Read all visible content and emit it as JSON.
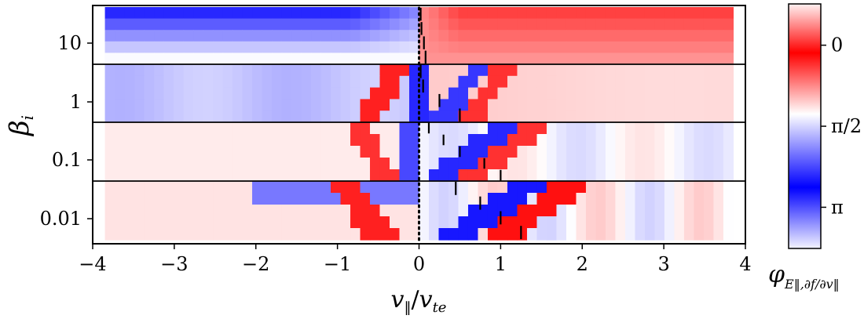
{
  "chart_data": {
    "type": "heatmap",
    "title": "",
    "xlabel": "v‖/vte",
    "ylabel": "βi",
    "xlim": [
      -4,
      4
    ],
    "x_ticks": [
      -4,
      -3,
      -2,
      -1,
      0,
      1,
      2,
      3,
      4
    ],
    "x_tick_labels": [
      "−4",
      "−3",
      "−2",
      "−1",
      "0",
      "1",
      "2",
      "3",
      "4"
    ],
    "panels": [
      {
        "beta_label": "10",
        "rows": 5,
        "phase_velocities": [
          0.02,
          0.03,
          0.06,
          0.08
        ]
      },
      {
        "beta_label": "1",
        "rows": 5,
        "phase_velocities": [
          0.02,
          0.05,
          0.25,
          0.5
        ]
      },
      {
        "beta_label": "0.1",
        "rows": 5,
        "phase_velocities": [
          0.12,
          0.3,
          0.5,
          0.8,
          1.0
        ]
      },
      {
        "beta_label": "0.01",
        "rows": 5,
        "phase_velocities": [
          0.45,
          0.75,
          1.0,
          1.25
        ]
      }
    ],
    "vertical_dotted_line_x": 0,
    "colorbar": {
      "label": "φE‖,∂f/∂v‖",
      "ticks": [
        {
          "label": "0",
          "value": 0
        },
        {
          "label": "π/2",
          "value": 1.5708
        },
        {
          "label": "π",
          "value": 3.1416
        }
      ],
      "range": [
        -0.8,
        3.94
      ],
      "colors": {
        "low": "#ff0000",
        "mid": "#ffffff",
        "high": "#0000ff",
        "end_high": "#ffeeee",
        "end_low": "#eeeeff"
      }
    }
  }
}
